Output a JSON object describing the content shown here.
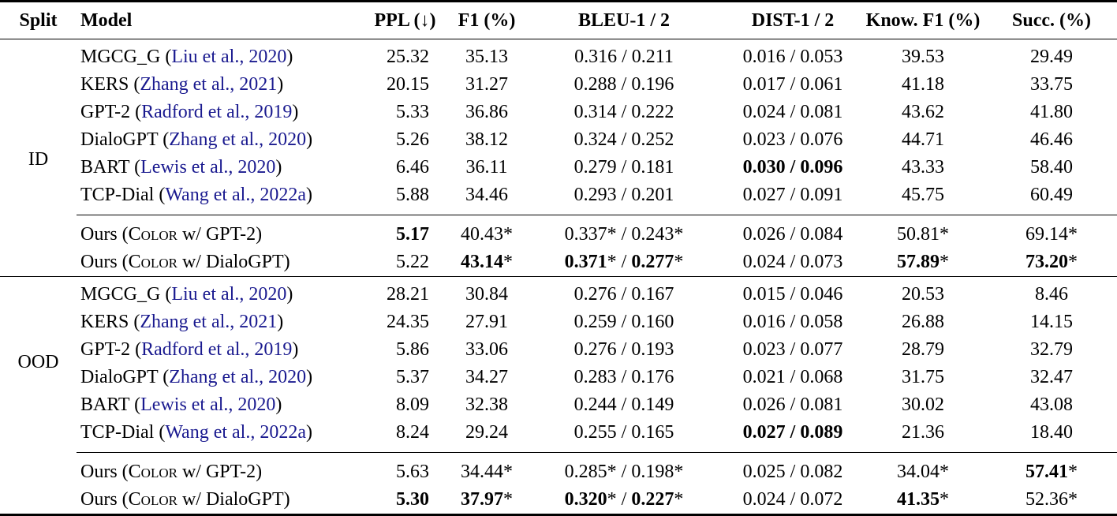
{
  "paper_table": {
    "columns": [
      "Split",
      "Model",
      "PPL (↓)",
      "F1 (%)",
      "BLEU-1 / 2",
      "DIST-1 / 2",
      "Know. F1 (%)",
      "Succ. (%)"
    ],
    "citation_color": "#1A1A8F",
    "sections": [
      {
        "split": "ID",
        "rows": [
          {
            "group": "baseline",
            "model": [
              {
                "t": "MGCG_G ("
              },
              {
                "t": "Liu et al., 2020",
                "cite": true
              },
              {
                "t": ")"
              }
            ],
            "cells": [
              [
                {
                  "t": "25.32"
                }
              ],
              [
                {
                  "t": "35.13"
                }
              ],
              [
                {
                  "t": "0.316 / 0.211"
                }
              ],
              [
                {
                  "t": "0.016 / 0.053"
                }
              ],
              [
                {
                  "t": "39.53"
                }
              ],
              [
                {
                  "t": "29.49"
                }
              ]
            ]
          },
          {
            "group": "baseline",
            "model": [
              {
                "t": "KERS ("
              },
              {
                "t": "Zhang et al., 2021",
                "cite": true
              },
              {
                "t": ")"
              }
            ],
            "cells": [
              [
                {
                  "t": "20.15"
                }
              ],
              [
                {
                  "t": "31.27"
                }
              ],
              [
                {
                  "t": "0.288 / 0.196"
                }
              ],
              [
                {
                  "t": "0.017 / 0.061"
                }
              ],
              [
                {
                  "t": "41.18"
                }
              ],
              [
                {
                  "t": "33.75"
                }
              ]
            ]
          },
          {
            "group": "baseline",
            "model": [
              {
                "t": "GPT-2 ("
              },
              {
                "t": "Radford et al., 2019",
                "cite": true
              },
              {
                "t": ")"
              }
            ],
            "cells": [
              [
                {
                  "t": "5.33"
                }
              ],
              [
                {
                  "t": "36.86"
                }
              ],
              [
                {
                  "t": "0.314 / 0.222"
                }
              ],
              [
                {
                  "t": "0.024 / 0.081"
                }
              ],
              [
                {
                  "t": "43.62"
                }
              ],
              [
                {
                  "t": "41.80"
                }
              ]
            ]
          },
          {
            "group": "baseline",
            "model": [
              {
                "t": "DialoGPT ("
              },
              {
                "t": "Zhang et al., 2020",
                "cite": true
              },
              {
                "t": ")"
              }
            ],
            "cells": [
              [
                {
                  "t": "5.26"
                }
              ],
              [
                {
                  "t": "38.12"
                }
              ],
              [
                {
                  "t": "0.324 / 0.252"
                }
              ],
              [
                {
                  "t": "0.023 / 0.076"
                }
              ],
              [
                {
                  "t": "44.71"
                }
              ],
              [
                {
                  "t": "46.46"
                }
              ]
            ]
          },
          {
            "group": "baseline",
            "model": [
              {
                "t": "BART ("
              },
              {
                "t": "Lewis et al., 2020",
                "cite": true
              },
              {
                "t": ")"
              }
            ],
            "cells": [
              [
                {
                  "t": "6.46"
                }
              ],
              [
                {
                  "t": "36.11"
                }
              ],
              [
                {
                  "t": "0.279 / 0.181"
                }
              ],
              [
                {
                  "t": "0.030 / 0.096",
                  "b": true
                }
              ],
              [
                {
                  "t": "43.33"
                }
              ],
              [
                {
                  "t": "58.40"
                }
              ]
            ]
          },
          {
            "group": "baseline",
            "model": [
              {
                "t": "TCP-Dial ("
              },
              {
                "t": "Wang et al., 2022a",
                "cite": true
              },
              {
                "t": ")"
              }
            ],
            "cells": [
              [
                {
                  "t": "5.88"
                }
              ],
              [
                {
                  "t": "34.46"
                }
              ],
              [
                {
                  "t": "0.293 / 0.201"
                }
              ],
              [
                {
                  "t": "0.027 / 0.091"
                }
              ],
              [
                {
                  "t": "45.75"
                }
              ],
              [
                {
                  "t": "60.49"
                }
              ]
            ]
          },
          {
            "group": "ours",
            "model": [
              {
                "t": "Ours ("
              },
              {
                "t": "Color",
                "sc": true
              },
              {
                "t": " w/ GPT-2)"
              }
            ],
            "cells": [
              [
                {
                  "t": "5.17",
                  "b": true
                }
              ],
              [
                {
                  "t": "40.43*"
                }
              ],
              [
                {
                  "t": "0.337* / 0.243*"
                }
              ],
              [
                {
                  "t": "0.026 / 0.084"
                }
              ],
              [
                {
                  "t": "50.81*"
                }
              ],
              [
                {
                  "t": "69.14*"
                }
              ]
            ]
          },
          {
            "group": "ours",
            "model": [
              {
                "t": "Ours ("
              },
              {
                "t": "Color",
                "sc": true
              },
              {
                "t": " w/ DialoGPT)"
              }
            ],
            "cells": [
              [
                {
                  "t": "5.22"
                }
              ],
              [
                {
                  "t": "43.14",
                  "b": true
                },
                {
                  "t": "*"
                }
              ],
              [
                {
                  "t": "0.371",
                  "b": true
                },
                {
                  "t": "* / "
                },
                {
                  "t": "0.277",
                  "b": true
                },
                {
                  "t": "*"
                }
              ],
              [
                {
                  "t": "0.024 / 0.073"
                }
              ],
              [
                {
                  "t": "57.89",
                  "b": true
                },
                {
                  "t": "*"
                }
              ],
              [
                {
                  "t": "73.20",
                  "b": true
                },
                {
                  "t": "*"
                }
              ]
            ]
          }
        ]
      },
      {
        "split": "OOD",
        "rows": [
          {
            "group": "baseline",
            "model": [
              {
                "t": "MGCG_G ("
              },
              {
                "t": "Liu et al., 2020",
                "cite": true
              },
              {
                "t": ")"
              }
            ],
            "cells": [
              [
                {
                  "t": "28.21"
                }
              ],
              [
                {
                  "t": "30.84"
                }
              ],
              [
                {
                  "t": "0.276 / 0.167"
                }
              ],
              [
                {
                  "t": "0.015 / 0.046"
                }
              ],
              [
                {
                  "t": "20.53"
                }
              ],
              [
                {
                  "t": "8.46"
                }
              ]
            ]
          },
          {
            "group": "baseline",
            "model": [
              {
                "t": "KERS ("
              },
              {
                "t": "Zhang et al., 2021",
                "cite": true
              },
              {
                "t": ")"
              }
            ],
            "cells": [
              [
                {
                  "t": "24.35"
                }
              ],
              [
                {
                  "t": "27.91"
                }
              ],
              [
                {
                  "t": "0.259 / 0.160"
                }
              ],
              [
                {
                  "t": "0.016 / 0.058"
                }
              ],
              [
                {
                  "t": "26.88"
                }
              ],
              [
                {
                  "t": "14.15"
                }
              ]
            ]
          },
          {
            "group": "baseline",
            "model": [
              {
                "t": "GPT-2 ("
              },
              {
                "t": "Radford et al., 2019",
                "cite": true
              },
              {
                "t": ")"
              }
            ],
            "cells": [
              [
                {
                  "t": "5.86"
                }
              ],
              [
                {
                  "t": "33.06"
                }
              ],
              [
                {
                  "t": "0.276 / 0.193"
                }
              ],
              [
                {
                  "t": "0.023 / 0.077"
                }
              ],
              [
                {
                  "t": "28.79"
                }
              ],
              [
                {
                  "t": "32.79"
                }
              ]
            ]
          },
          {
            "group": "baseline",
            "model": [
              {
                "t": "DialoGPT ("
              },
              {
                "t": "Zhang et al., 2020",
                "cite": true
              },
              {
                "t": ")"
              }
            ],
            "cells": [
              [
                {
                  "t": "5.37"
                }
              ],
              [
                {
                  "t": "34.27"
                }
              ],
              [
                {
                  "t": "0.283 / 0.176"
                }
              ],
              [
                {
                  "t": "0.021 / 0.068"
                }
              ],
              [
                {
                  "t": "31.75"
                }
              ],
              [
                {
                  "t": "32.47"
                }
              ]
            ]
          },
          {
            "group": "baseline",
            "model": [
              {
                "t": "BART ("
              },
              {
                "t": "Lewis et al., 2020",
                "cite": true
              },
              {
                "t": ")"
              }
            ],
            "cells": [
              [
                {
                  "t": "8.09"
                }
              ],
              [
                {
                  "t": "32.38"
                }
              ],
              [
                {
                  "t": "0.244 / 0.149"
                }
              ],
              [
                {
                  "t": "0.026 / 0.081"
                }
              ],
              [
                {
                  "t": "30.02"
                }
              ],
              [
                {
                  "t": "43.08"
                }
              ]
            ]
          },
          {
            "group": "baseline",
            "model": [
              {
                "t": "TCP-Dial ("
              },
              {
                "t": "Wang et al., 2022a",
                "cite": true
              },
              {
                "t": ")"
              }
            ],
            "cells": [
              [
                {
                  "t": "8.24"
                }
              ],
              [
                {
                  "t": "29.24"
                }
              ],
              [
                {
                  "t": "0.255 / 0.165"
                }
              ],
              [
                {
                  "t": "0.027 / 0.089",
                  "b": true
                }
              ],
              [
                {
                  "t": "21.36"
                }
              ],
              [
                {
                  "t": "18.40"
                }
              ]
            ]
          },
          {
            "group": "ours",
            "model": [
              {
                "t": "Ours ("
              },
              {
                "t": "Color",
                "sc": true
              },
              {
                "t": " w/ GPT-2)"
              }
            ],
            "cells": [
              [
                {
                  "t": "5.63"
                }
              ],
              [
                {
                  "t": "34.44*"
                }
              ],
              [
                {
                  "t": "0.285* / 0.198*"
                }
              ],
              [
                {
                  "t": "0.025 / 0.082"
                }
              ],
              [
                {
                  "t": "34.04*"
                }
              ],
              [
                {
                  "t": "57.41",
                  "b": true
                },
                {
                  "t": "*"
                }
              ]
            ]
          },
          {
            "group": "ours",
            "model": [
              {
                "t": "Ours ("
              },
              {
                "t": "Color",
                "sc": true
              },
              {
                "t": " w/ DialoGPT)"
              }
            ],
            "cells": [
              [
                {
                  "t": "5.30",
                  "b": true
                }
              ],
              [
                {
                  "t": "37.97",
                  "b": true
                },
                {
                  "t": "*"
                }
              ],
              [
                {
                  "t": "0.320",
                  "b": true
                },
                {
                  "t": "* / "
                },
                {
                  "t": "0.227",
                  "b": true
                },
                {
                  "t": "*"
                }
              ],
              [
                {
                  "t": "0.024 / 0.072"
                }
              ],
              [
                {
                  "t": "41.35",
                  "b": true
                },
                {
                  "t": "*"
                }
              ],
              [
                {
                  "t": "52.36*"
                }
              ]
            ]
          }
        ]
      }
    ]
  }
}
